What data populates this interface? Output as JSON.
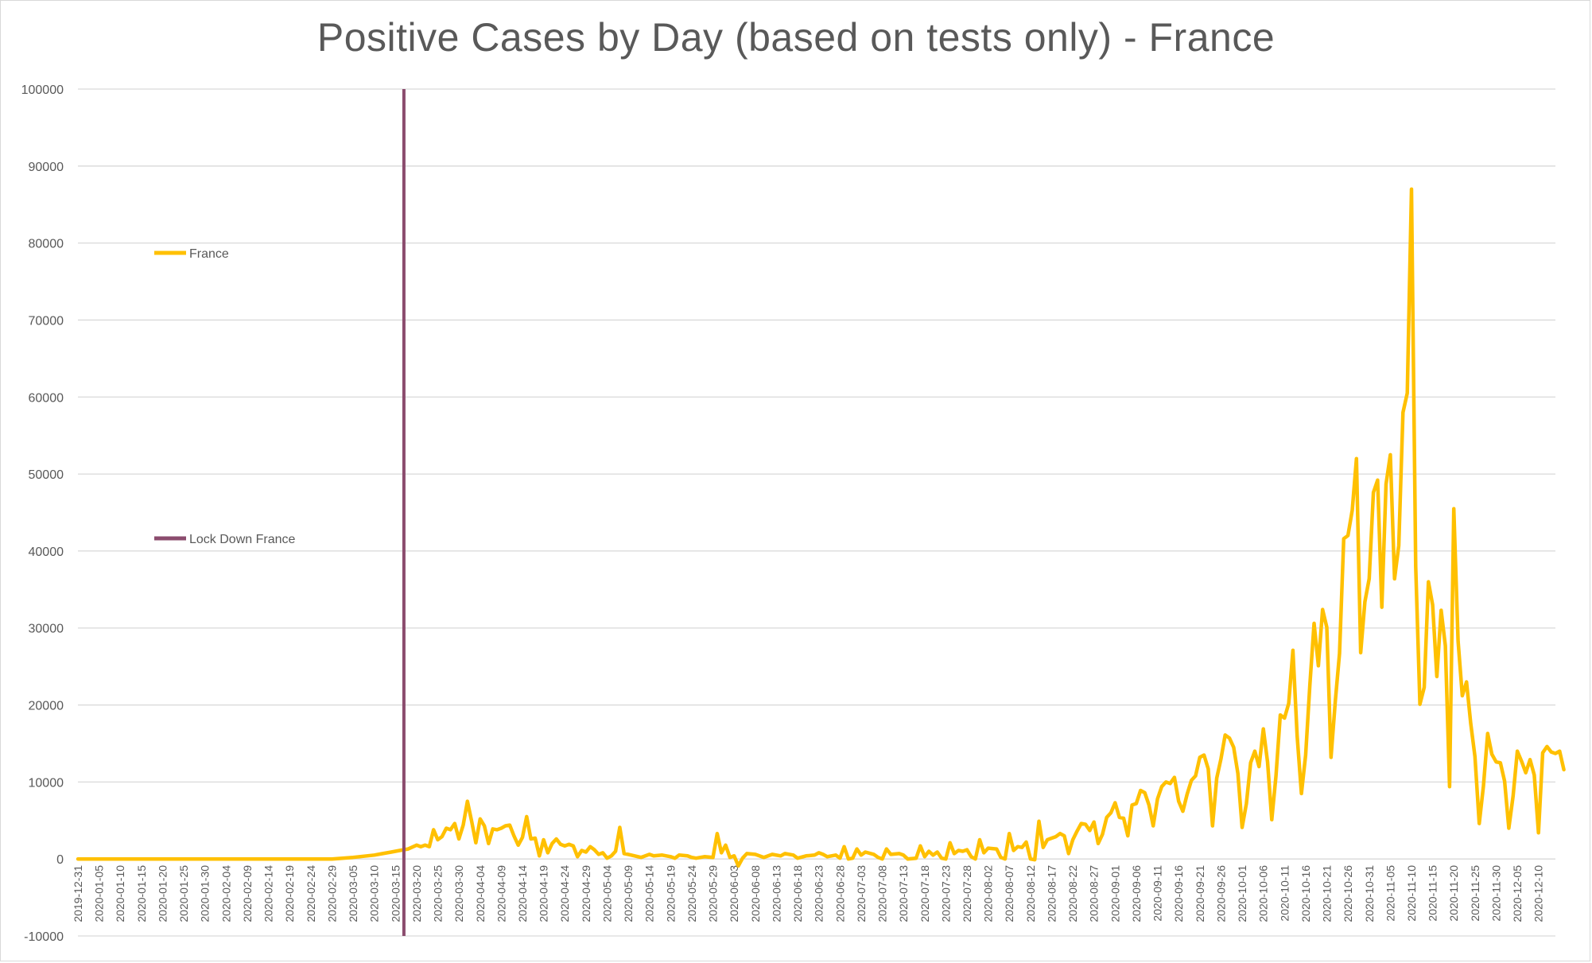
{
  "chart_data": {
    "type": "line",
    "title": "Positive Cases by Day (based on tests only) - France",
    "xlabel": "",
    "ylabel": "",
    "ylim": [
      -10000,
      100000
    ],
    "yticks": [
      "-10000",
      "0",
      "10000",
      "20000",
      "30000",
      "40000",
      "50000",
      "60000",
      "70000",
      "80000",
      "90000",
      "100000"
    ],
    "x_start_label": "2019-12-31",
    "xticks": [
      "2019-12-31",
      "2020-01-05",
      "2020-01-10",
      "2020-01-15",
      "2020-01-20",
      "2020-01-25",
      "2020-01-30",
      "2020-02-04",
      "2020-02-09",
      "2020-02-14",
      "2020-02-19",
      "2020-02-24",
      "2020-02-29",
      "2020-03-05",
      "2020-03-10",
      "2020-03-15",
      "2020-03-20",
      "2020-03-25",
      "2020-03-30",
      "2020-04-04",
      "2020-04-09",
      "2020-04-14",
      "2020-04-19",
      "2020-04-24",
      "2020-04-29",
      "2020-05-04",
      "2020-05-09",
      "2020-05-14",
      "2020-05-19",
      "2020-05-24",
      "2020-05-29",
      "2020-06-03",
      "2020-06-08",
      "2020-06-13",
      "2020-06-18",
      "2020-06-23",
      "2020-06-28",
      "2020-07-03",
      "2020-07-08",
      "2020-07-13",
      "2020-07-18",
      "2020-07-23",
      "2020-07-28",
      "2020-08-02",
      "2020-08-07",
      "2020-08-12",
      "2020-08-17",
      "2020-08-22",
      "2020-08-27",
      "2020-09-01",
      "2020-09-06",
      "2020-09-11",
      "2020-09-16",
      "2020-09-21",
      "2020-09-26",
      "2020-10-01",
      "2020-10-06",
      "2020-10-11",
      "2020-10-16",
      "2020-10-21",
      "2020-10-26",
      "2020-10-31",
      "2020-11-05",
      "2020-11-10",
      "2020-11-15",
      "2020-11-20",
      "2020-11-25",
      "2020-11-30",
      "2020-12-05",
      "2020-12-10"
    ],
    "x_range": [
      "2019-12-31",
      "2020-12-14"
    ],
    "grid": true,
    "legend": "inside-left",
    "series": [
      {
        "name": "France",
        "color": "#FFC000",
        "points": [
          [
            "2019-12-31",
            0
          ],
          [
            "2020-02-29",
            0
          ],
          [
            "2020-03-05",
            200
          ],
          [
            "2020-03-10",
            500
          ],
          [
            "2020-03-12",
            700
          ],
          [
            "2020-03-14",
            900
          ],
          [
            "2020-03-16",
            1100
          ],
          [
            "2020-03-18",
            1300
          ],
          [
            "2020-03-20",
            1800
          ],
          [
            "2020-03-21",
            1600
          ],
          [
            "2020-03-22",
            1800
          ],
          [
            "2020-03-23",
            1600
          ],
          [
            "2020-03-24",
            3800
          ],
          [
            "2020-03-25",
            2500
          ],
          [
            "2020-03-26",
            2900
          ],
          [
            "2020-03-27",
            4000
          ],
          [
            "2020-03-28",
            3800
          ],
          [
            "2020-03-29",
            4600
          ],
          [
            "2020-03-30",
            2600
          ],
          [
            "2020-03-31",
            4400
          ],
          [
            "2020-04-01",
            7500
          ],
          [
            "2020-04-02",
            4900
          ],
          [
            "2020-04-03",
            2100
          ],
          [
            "2020-04-04",
            5200
          ],
          [
            "2020-04-05",
            4300
          ],
          [
            "2020-04-06",
            2000
          ],
          [
            "2020-04-07",
            3900
          ],
          [
            "2020-04-08",
            3800
          ],
          [
            "2020-04-09",
            4000
          ],
          [
            "2020-04-10",
            4300
          ],
          [
            "2020-04-11",
            4400
          ],
          [
            "2020-04-12",
            3000
          ],
          [
            "2020-04-13",
            1800
          ],
          [
            "2020-04-14",
            2800
          ],
          [
            "2020-04-15",
            5500
          ],
          [
            "2020-04-16",
            2600
          ],
          [
            "2020-04-17",
            2700
          ],
          [
            "2020-04-18",
            400
          ],
          [
            "2020-04-19",
            2500
          ],
          [
            "2020-04-20",
            800
          ],
          [
            "2020-04-21",
            2000
          ],
          [
            "2020-04-22",
            2600
          ],
          [
            "2020-04-23",
            1900
          ],
          [
            "2020-04-24",
            1700
          ],
          [
            "2020-04-25",
            1900
          ],
          [
            "2020-04-26",
            1700
          ],
          [
            "2020-04-27",
            300
          ],
          [
            "2020-04-28",
            1100
          ],
          [
            "2020-04-29",
            900
          ],
          [
            "2020-04-30",
            1600
          ],
          [
            "2020-05-01",
            1200
          ],
          [
            "2020-05-02",
            600
          ],
          [
            "2020-05-03",
            800
          ],
          [
            "2020-05-04",
            100
          ],
          [
            "2020-05-05",
            400
          ],
          [
            "2020-05-06",
            1000
          ],
          [
            "2020-05-07",
            4100
          ],
          [
            "2020-05-08",
            700
          ],
          [
            "2020-05-09",
            600
          ],
          [
            "2020-05-12",
            200
          ],
          [
            "2020-05-14",
            600
          ],
          [
            "2020-05-15",
            400
          ],
          [
            "2020-05-17",
            500
          ],
          [
            "2020-05-19",
            300
          ],
          [
            "2020-05-20",
            100
          ],
          [
            "2020-05-21",
            500
          ],
          [
            "2020-05-23",
            400
          ],
          [
            "2020-05-24",
            200
          ],
          [
            "2020-05-25",
            100
          ],
          [
            "2020-05-27",
            300
          ],
          [
            "2020-05-29",
            200
          ],
          [
            "2020-05-30",
            3300
          ],
          [
            "2020-05-31",
            800
          ],
          [
            "2020-06-01",
            1800
          ],
          [
            "2020-06-02",
            200
          ],
          [
            "2020-06-03",
            400
          ],
          [
            "2020-06-04",
            -900
          ],
          [
            "2020-06-05",
            100
          ],
          [
            "2020-06-06",
            700
          ],
          [
            "2020-06-08",
            600
          ],
          [
            "2020-06-10",
            200
          ],
          [
            "2020-06-12",
            600
          ],
          [
            "2020-06-14",
            400
          ],
          [
            "2020-06-15",
            700
          ],
          [
            "2020-06-17",
            500
          ],
          [
            "2020-06-18",
            100
          ],
          [
            "2020-06-20",
            400
          ],
          [
            "2020-06-22",
            500
          ],
          [
            "2020-06-23",
            800
          ],
          [
            "2020-06-24",
            600
          ],
          [
            "2020-06-25",
            300
          ],
          [
            "2020-06-27",
            500
          ],
          [
            "2020-06-28",
            100
          ],
          [
            "2020-06-29",
            1600
          ],
          [
            "2020-06-30",
            0
          ],
          [
            "2020-07-01",
            100
          ],
          [
            "2020-07-02",
            1300
          ],
          [
            "2020-07-03",
            500
          ],
          [
            "2020-07-04",
            900
          ],
          [
            "2020-07-06",
            600
          ],
          [
            "2020-07-07",
            200
          ],
          [
            "2020-07-08",
            0
          ],
          [
            "2020-07-09",
            1300
          ],
          [
            "2020-07-10",
            600
          ],
          [
            "2020-07-12",
            700
          ],
          [
            "2020-07-13",
            500
          ],
          [
            "2020-07-14",
            0
          ],
          [
            "2020-07-16",
            100
          ],
          [
            "2020-07-17",
            1700
          ],
          [
            "2020-07-18",
            300
          ],
          [
            "2020-07-19",
            1000
          ],
          [
            "2020-07-20",
            500
          ],
          [
            "2020-07-21",
            900
          ],
          [
            "2020-07-22",
            100
          ],
          [
            "2020-07-23",
            0
          ],
          [
            "2020-07-24",
            2100
          ],
          [
            "2020-07-25",
            700
          ],
          [
            "2020-07-26",
            1100
          ],
          [
            "2020-07-27",
            1000
          ],
          [
            "2020-07-28",
            1200
          ],
          [
            "2020-07-29",
            300
          ],
          [
            "2020-07-30",
            0
          ],
          [
            "2020-07-31",
            2500
          ],
          [
            "2020-08-01",
            800
          ],
          [
            "2020-08-02",
            1400
          ],
          [
            "2020-08-04",
            1300
          ],
          [
            "2020-08-05",
            200
          ],
          [
            "2020-08-06",
            0
          ],
          [
            "2020-08-07",
            3300
          ],
          [
            "2020-08-08",
            1100
          ],
          [
            "2020-08-09",
            1600
          ],
          [
            "2020-08-10",
            1500
          ],
          [
            "2020-08-11",
            2200
          ],
          [
            "2020-08-12",
            0
          ],
          [
            "2020-08-13",
            -100
          ],
          [
            "2020-08-14",
            4900
          ],
          [
            "2020-08-15",
            1500
          ],
          [
            "2020-08-16",
            2500
          ],
          [
            "2020-08-17",
            2700
          ],
          [
            "2020-08-18",
            2900
          ],
          [
            "2020-08-19",
            3300
          ],
          [
            "2020-08-20",
            3000
          ],
          [
            "2020-08-21",
            700
          ],
          [
            "2020-08-22",
            2500
          ],
          [
            "2020-08-23",
            3600
          ],
          [
            "2020-08-24",
            4600
          ],
          [
            "2020-08-25",
            4500
          ],
          [
            "2020-08-26",
            3700
          ],
          [
            "2020-08-27",
            4800
          ],
          [
            "2020-08-28",
            2000
          ],
          [
            "2020-08-29",
            3200
          ],
          [
            "2020-08-30",
            5400
          ],
          [
            "2020-08-31",
            6000
          ],
          [
            "2020-09-01",
            7300
          ],
          [
            "2020-09-02",
            5400
          ],
          [
            "2020-09-03",
            5300
          ],
          [
            "2020-09-04",
            3000
          ],
          [
            "2020-09-05",
            7000
          ],
          [
            "2020-09-06",
            7200
          ],
          [
            "2020-09-07",
            8900
          ],
          [
            "2020-09-08",
            8600
          ],
          [
            "2020-09-09",
            7000
          ],
          [
            "2020-09-10",
            4300
          ],
          [
            "2020-09-11",
            7800
          ],
          [
            "2020-09-12",
            9400
          ],
          [
            "2020-09-13",
            10000
          ],
          [
            "2020-09-14",
            9800
          ],
          [
            "2020-09-15",
            10600
          ],
          [
            "2020-09-16",
            7500
          ],
          [
            "2020-09-17",
            6200
          ],
          [
            "2020-09-18",
            8400
          ],
          [
            "2020-09-19",
            10200
          ],
          [
            "2020-09-20",
            10800
          ],
          [
            "2020-09-21",
            13200
          ],
          [
            "2020-09-22",
            13500
          ],
          [
            "2020-09-23",
            11700
          ],
          [
            "2020-09-24",
            4300
          ],
          [
            "2020-09-25",
            10500
          ],
          [
            "2020-09-26",
            13000
          ],
          [
            "2020-09-27",
            16100
          ],
          [
            "2020-09-28",
            15700
          ],
          [
            "2020-09-29",
            14500
          ],
          [
            "2020-09-30",
            11100
          ],
          [
            "2020-10-01",
            4100
          ],
          [
            "2020-10-02",
            7200
          ],
          [
            "2020-10-03",
            12500
          ],
          [
            "2020-10-04",
            14000
          ],
          [
            "2020-10-05",
            12000
          ],
          [
            "2020-10-06",
            16900
          ],
          [
            "2020-10-07",
            12600
          ],
          [
            "2020-10-08",
            5100
          ],
          [
            "2020-10-09",
            10800
          ],
          [
            "2020-10-10",
            18700
          ],
          [
            "2020-10-11",
            18300
          ],
          [
            "2020-10-12",
            20200
          ],
          [
            "2020-10-13",
            27100
          ],
          [
            "2020-10-14",
            16000
          ],
          [
            "2020-10-15",
            8500
          ],
          [
            "2020-10-16",
            13500
          ],
          [
            "2020-10-17",
            22600
          ],
          [
            "2020-10-18",
            30600
          ],
          [
            "2020-10-19",
            25100
          ],
          [
            "2020-10-20",
            32400
          ],
          [
            "2020-10-21",
            30100
          ],
          [
            "2020-10-22",
            13200
          ],
          [
            "2020-10-23",
            20500
          ],
          [
            "2020-10-24",
            26700
          ],
          [
            "2020-10-25",
            41600
          ],
          [
            "2020-10-26",
            42000
          ],
          [
            "2020-10-27",
            45300
          ],
          [
            "2020-10-28",
            52000
          ],
          [
            "2020-10-29",
            26800
          ],
          [
            "2020-10-30",
            33400
          ],
          [
            "2020-10-31",
            36400
          ],
          [
            "2020-11-01",
            47600
          ],
          [
            "2020-11-02",
            49200
          ],
          [
            "2020-11-03",
            32700
          ],
          [
            "2020-11-04",
            48700
          ],
          [
            "2020-11-05",
            52500
          ],
          [
            "2020-11-06",
            36400
          ],
          [
            "2020-11-07",
            40700
          ],
          [
            "2020-11-08",
            58000
          ],
          [
            "2020-11-09",
            60500
          ],
          [
            "2020-11-10",
            87000
          ],
          [
            "2020-11-11",
            38000
          ],
          [
            "2020-11-12",
            20100
          ],
          [
            "2020-11-13",
            22300
          ],
          [
            "2020-11-14",
            36000
          ],
          [
            "2020-11-15",
            33000
          ],
          [
            "2020-11-16",
            23700
          ],
          [
            "2020-11-17",
            32300
          ],
          [
            "2020-11-18",
            27700
          ],
          [
            "2020-11-19",
            9400
          ],
          [
            "2020-11-20",
            45500
          ],
          [
            "2020-11-21",
            28300
          ],
          [
            "2020-11-22",
            21200
          ],
          [
            "2020-11-23",
            23000
          ],
          [
            "2020-11-24",
            17600
          ],
          [
            "2020-11-25",
            13300
          ],
          [
            "2020-11-26",
            4600
          ],
          [
            "2020-11-27",
            9500
          ],
          [
            "2020-11-28",
            16300
          ],
          [
            "2020-11-29",
            13600
          ],
          [
            "2020-11-30",
            12600
          ],
          [
            "2020-12-01",
            12500
          ],
          [
            "2020-12-02",
            10100
          ],
          [
            "2020-12-03",
            4000
          ],
          [
            "2020-12-04",
            8200
          ],
          [
            "2020-12-05",
            14000
          ],
          [
            "2020-12-06",
            12700
          ],
          [
            "2020-12-07",
            11200
          ],
          [
            "2020-12-08",
            12900
          ],
          [
            "2020-12-09",
            10900
          ],
          [
            "2020-12-10",
            3400
          ],
          [
            "2020-12-11",
            13800
          ],
          [
            "2020-12-12",
            14600
          ],
          [
            "2020-12-13",
            13900
          ],
          [
            "2020-12-14",
            13700
          ],
          [
            "2020-12-15",
            14000
          ],
          [
            "2020-12-16",
            11600
          ]
        ]
      },
      {
        "name": "Lock Down France",
        "color": "#8B4C6E",
        "type": "vertical-line",
        "x": "2020-03-17"
      }
    ]
  }
}
